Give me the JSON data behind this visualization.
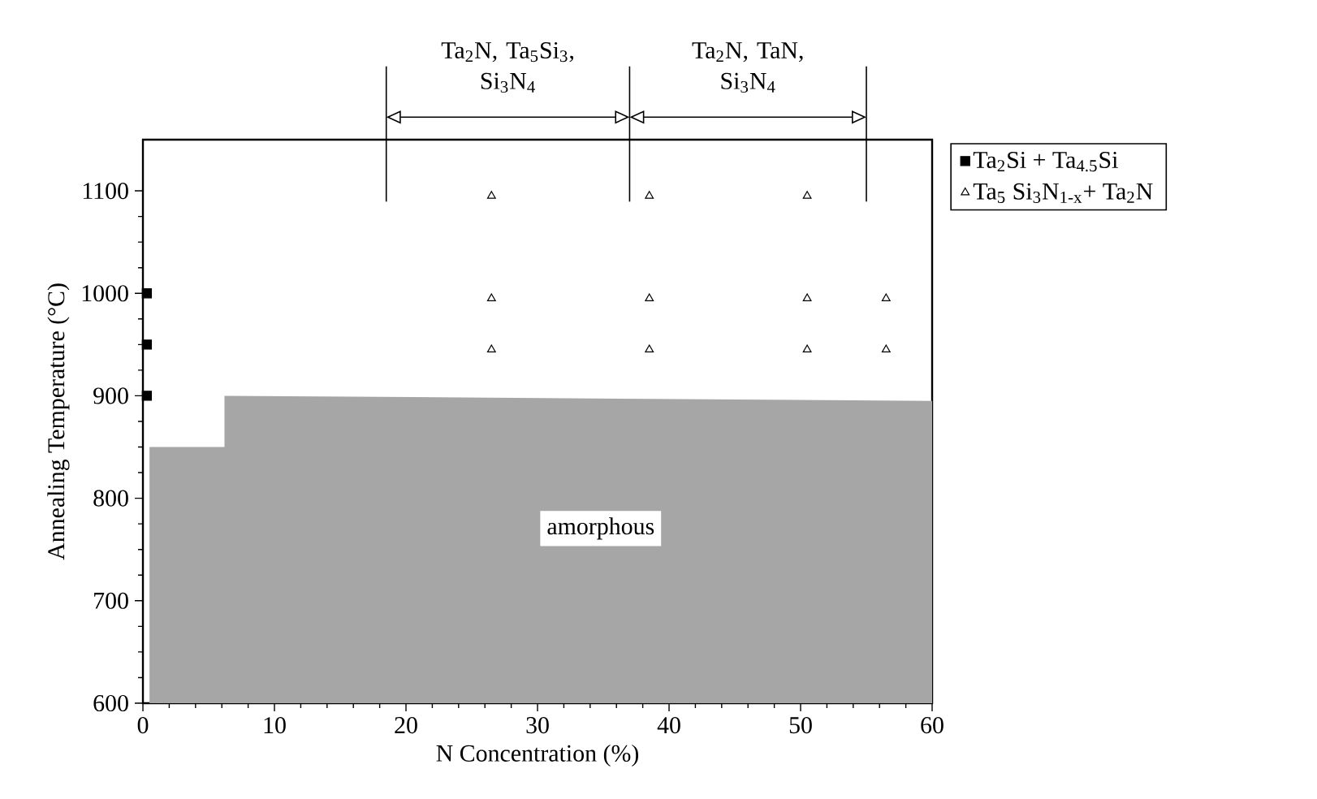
{
  "chart_data": {
    "type": "scatter",
    "xlabel": "N Concentration (%)",
    "ylabel": "Annealing Temperature (°C)",
    "xlim": [
      0,
      60
    ],
    "ylim": [
      600,
      1150
    ],
    "xticks": [
      0,
      10,
      20,
      30,
      40,
      50,
      60
    ],
    "yticks": [
      600,
      700,
      800,
      900,
      1000,
      1100
    ],
    "grid": false,
    "legend": "right",
    "series": [
      {
        "name": "Ta$_{2}$Si + Ta$_{4.5}$Si",
        "color": "#000000",
        "marker": "square",
        "x": [
          0.3,
          0.3,
          0.3
        ],
        "values": [
          900,
          950,
          1000
        ]
      },
      {
        "name": "Ta$_{5}$ Si$_{3}$N$_{1-x}$+ Ta$_{2}$N",
        "color": "#000000",
        "marker": "triangle",
        "x": [
          26.5,
          38.5,
          50.5,
          26.5,
          38.5,
          50.5,
          56.5,
          26.5,
          38.5,
          50.5,
          56.5
        ],
        "values": [
          1095,
          1095,
          1095,
          995,
          995,
          995,
          995,
          945,
          945,
          945,
          945
        ]
      },
      {
        "type": "area",
        "color": "#a6a6a6",
        "x": [
          0.5,
          0.5,
          6.2,
          6.2,
          60
        ],
        "values": [
          850,
          850,
          850,
          900,
          895
        ]
      }
    ],
    "ref_lines": [
      {
        "axis": "x",
        "value": 18.5
      },
      {
        "axis": "x",
        "value": 37
      },
      {
        "axis": "x",
        "value": 55
      }
    ],
    "annotations": [
      "Ta$_{2}$N, Ta$_{5}$Si$_{3}$, Si$_{3}$N$_{4}$",
      "Ta$_{2}$N, TaN, Si$_{3}$N$_{4}$",
      "amorphous"
    ]
  }
}
